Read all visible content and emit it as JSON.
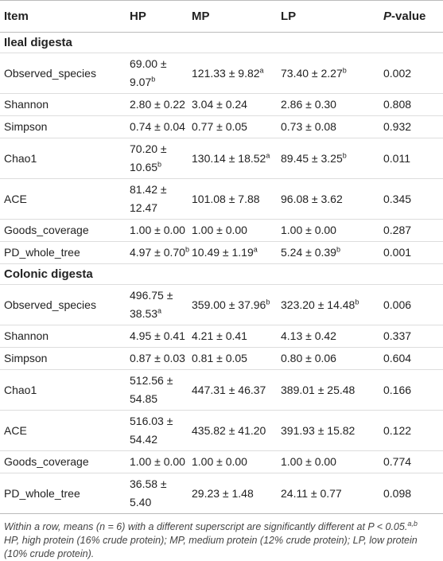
{
  "table": {
    "header": [
      "Item",
      "HP",
      "MP",
      "LP",
      {
        "em": "P",
        "text": "-value"
      }
    ],
    "rows": [
      {
        "section": "Ileal digesta"
      },
      {
        "cells": [
          "Observed_species",
          {
            "text": "69.00 ± 9.07",
            "sup": "b"
          },
          {
            "text": "121.33 ± 9.82",
            "sup": "a"
          },
          {
            "text": "73.40 ± 2.27",
            "sup": "b"
          },
          "0.002"
        ]
      },
      {
        "cells": [
          "Shannon",
          "2.80 ± 0.22",
          "3.04 ± 0.24",
          "2.86 ± 0.30",
          "0.808"
        ]
      },
      {
        "cells": [
          "Simpson",
          "0.74 ± 0.04",
          "0.77 ± 0.05",
          "0.73 ± 0.08",
          "0.932"
        ]
      },
      {
        "cells": [
          "Chao1",
          {
            "text": "70.20 ± 10.65",
            "sup": "b"
          },
          {
            "text": "130.14 ± 18.52",
            "sup": "a"
          },
          {
            "text": "89.45 ± 3.25",
            "sup": "b"
          },
          "0.011"
        ]
      },
      {
        "cells": [
          "ACE",
          "81.42 ± 12.47",
          "101.08 ± 7.88",
          "96.08 ± 3.62",
          "0.345"
        ]
      },
      {
        "cells": [
          "Goods_coverage",
          "1.00 ± 0.00",
          "1.00 ± 0.00",
          "1.00 ± 0.00",
          "0.287"
        ]
      },
      {
        "cells": [
          "PD_whole_tree",
          {
            "text": "4.97 ± 0.70",
            "sup": "b"
          },
          {
            "text": "10.49 ± 1.19",
            "sup": "a"
          },
          {
            "text": "5.24 ± 0.39",
            "sup": "b"
          },
          "0.001"
        ]
      },
      {
        "section": "Colonic digesta"
      },
      {
        "cells": [
          "Observed_species",
          {
            "text": "496.75 ± 38.53",
            "sup": "a"
          },
          {
            "text": "359.00 ± 37.96",
            "sup": "b"
          },
          {
            "text": "323.20 ± 14.48",
            "sup": "b"
          },
          "0.006"
        ]
      },
      {
        "cells": [
          "Shannon",
          "4.95 ± 0.41",
          "4.21 ± 0.41",
          "4.13 ± 0.42",
          "0.337"
        ]
      },
      {
        "cells": [
          "Simpson",
          "0.87 ± 0.03",
          "0.81 ± 0.05",
          "0.80 ± 0.06",
          "0.604"
        ]
      },
      {
        "cells": [
          "Chao1",
          "512.56 ± 54.85",
          "447.31 ± 46.37",
          "389.01 ± 25.48",
          "0.166"
        ]
      },
      {
        "cells": [
          "ACE",
          "516.03 ± 54.42",
          "435.82 ± 41.20",
          "391.93 ± 15.82",
          "0.122"
        ]
      },
      {
        "cells": [
          "Goods_coverage",
          "1.00 ± 0.00",
          "1.00 ± 0.00",
          "1.00 ± 0.00",
          "0.774"
        ]
      },
      {
        "cells": [
          "PD_whole_tree",
          "36.58 ± 5.40",
          "29.23 ± 1.48",
          "24.11 ± 0.77",
          "0.098"
        ]
      }
    ],
    "footnotes": [
      {
        "sup": "a,b",
        "text": "Within a row, means (n = 6) with a different superscript are significantly different at P < 0.05."
      },
      {
        "text": "HP, high protein (16% crude protein); MP, medium protein (12% crude protein); LP, low protein (10% crude protein)."
      }
    ]
  }
}
